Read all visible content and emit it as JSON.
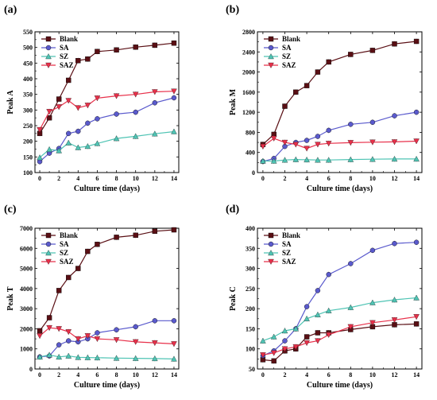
{
  "chart_data": [
    {
      "panel_label": "(a)",
      "type": "line",
      "xlabel": "Culture time (days)",
      "ylabel": "Peak A",
      "x": [
        0,
        1,
        2,
        3,
        4,
        5,
        6,
        8,
        10,
        12,
        14
      ],
      "xlim": [
        -0.5,
        14.5
      ],
      "xticks": [
        0,
        2,
        4,
        6,
        8,
        10,
        12,
        14
      ],
      "ylim": [
        100,
        550
      ],
      "yticks": [
        100,
        150,
        200,
        250,
        300,
        350,
        400,
        450,
        500,
        550
      ],
      "legend_position": "top-left",
      "series": [
        {
          "name": "Blank",
          "color": "#5a0f14",
          "marker": "square",
          "values": [
            225,
            275,
            335,
            395,
            458,
            463,
            487,
            492,
            501,
            507,
            514
          ]
        },
        {
          "name": "SA",
          "color": "#5a5acd",
          "marker": "circle",
          "values": [
            135,
            162,
            177,
            225,
            232,
            258,
            272,
            287,
            293,
            323,
            339
          ]
        },
        {
          "name": "SZ",
          "color": "#4fc4b4",
          "marker": "triangle-up",
          "values": [
            148,
            174,
            170,
            195,
            180,
            184,
            193,
            209,
            216,
            224,
            231
          ]
        },
        {
          "name": "SAZ",
          "color": "#e8304a",
          "marker": "triangle-down",
          "values": [
            237,
            295,
            310,
            330,
            307,
            315,
            338,
            345,
            350,
            358,
            360
          ]
        }
      ]
    },
    {
      "panel_label": "(b)",
      "type": "line",
      "xlabel": "Culture time (days)",
      "ylabel": "Peak M",
      "x": [
        0,
        1,
        2,
        3,
        4,
        5,
        6,
        8,
        10,
        12,
        14
      ],
      "xlim": [
        -0.5,
        14.5
      ],
      "xticks": [
        0,
        2,
        4,
        6,
        8,
        10,
        12,
        14
      ],
      "ylim": [
        0,
        2800
      ],
      "yticks": [
        0,
        400,
        800,
        1200,
        1600,
        2000,
        2400,
        2800
      ],
      "legend_position": "top-left",
      "series": [
        {
          "name": "Blank",
          "color": "#5a0f14",
          "marker": "square",
          "values": [
            560,
            760,
            1320,
            1600,
            1730,
            2000,
            2200,
            2350,
            2430,
            2560,
            2610
          ]
        },
        {
          "name": "SA",
          "color": "#5a5acd",
          "marker": "circle",
          "values": [
            220,
            280,
            520,
            600,
            640,
            720,
            840,
            960,
            1000,
            1130,
            1200
          ]
        },
        {
          "name": "SZ",
          "color": "#4fc4b4",
          "marker": "triangle-up",
          "values": [
            230,
            230,
            250,
            260,
            255,
            250,
            250,
            260,
            265,
            270,
            270
          ]
        },
        {
          "name": "SAZ",
          "color": "#e8304a",
          "marker": "triangle-down",
          "values": [
            520,
            680,
            600,
            560,
            480,
            560,
            580,
            595,
            605,
            610,
            625
          ]
        }
      ]
    },
    {
      "panel_label": "(c)",
      "type": "line",
      "xlabel": "Culture time (days)",
      "ylabel": "Peak T",
      "x": [
        0,
        1,
        2,
        3,
        4,
        5,
        6,
        8,
        10,
        12,
        14
      ],
      "xlim": [
        -0.5,
        14.5
      ],
      "xticks": [
        0,
        2,
        4,
        6,
        8,
        10,
        12,
        14
      ],
      "ylim": [
        0,
        7000
      ],
      "yticks": [
        0,
        1000,
        2000,
        3000,
        4000,
        5000,
        6000,
        7000
      ],
      "legend_position": "top-left",
      "series": [
        {
          "name": "Blank",
          "color": "#5a0f14",
          "marker": "square",
          "values": [
            1900,
            2550,
            3900,
            4550,
            5000,
            5850,
            6200,
            6550,
            6650,
            6850,
            6920
          ]
        },
        {
          "name": "SA",
          "color": "#5a5acd",
          "marker": "circle",
          "values": [
            600,
            650,
            1200,
            1400,
            1350,
            1500,
            1800,
            1950,
            2100,
            2400,
            2400
          ]
        },
        {
          "name": "SZ",
          "color": "#4fc4b4",
          "marker": "triangle-up",
          "values": [
            600,
            700,
            600,
            650,
            580,
            570,
            560,
            540,
            530,
            520,
            500
          ]
        },
        {
          "name": "SAZ",
          "color": "#e8304a",
          "marker": "triangle-down",
          "values": [
            1650,
            2050,
            2000,
            1850,
            1500,
            1650,
            1500,
            1450,
            1350,
            1300,
            1250
          ]
        }
      ]
    },
    {
      "panel_label": "(d)",
      "type": "line",
      "xlabel": "Culture time (days)",
      "ylabel": "Peak C",
      "x": [
        0,
        1,
        2,
        3,
        4,
        5,
        6,
        8,
        10,
        12,
        14
      ],
      "xlim": [
        -0.5,
        14.5
      ],
      "xticks": [
        0,
        2,
        4,
        6,
        8,
        10,
        12,
        14
      ],
      "ylim": [
        50,
        400
      ],
      "yticks": [
        50,
        100,
        150,
        200,
        250,
        300,
        350,
        400
      ],
      "legend_position": "top-left",
      "series": [
        {
          "name": "Blank",
          "color": "#5a0f14",
          "marker": "square",
          "values": [
            73,
            70,
            95,
            100,
            130,
            140,
            140,
            148,
            155,
            160,
            162
          ]
        },
        {
          "name": "SA",
          "color": "#5a5acd",
          "marker": "circle",
          "values": [
            83,
            95,
            120,
            150,
            205,
            245,
            285,
            312,
            345,
            362,
            365
          ]
        },
        {
          "name": "SZ",
          "color": "#4fc4b4",
          "marker": "triangle-up",
          "values": [
            120,
            130,
            145,
            150,
            175,
            185,
            195,
            203,
            215,
            222,
            227
          ]
        },
        {
          "name": "SAZ",
          "color": "#e8304a",
          "marker": "triangle-down",
          "values": [
            85,
            90,
            100,
            105,
            115,
            120,
            135,
            155,
            165,
            172,
            180
          ]
        }
      ]
    }
  ]
}
